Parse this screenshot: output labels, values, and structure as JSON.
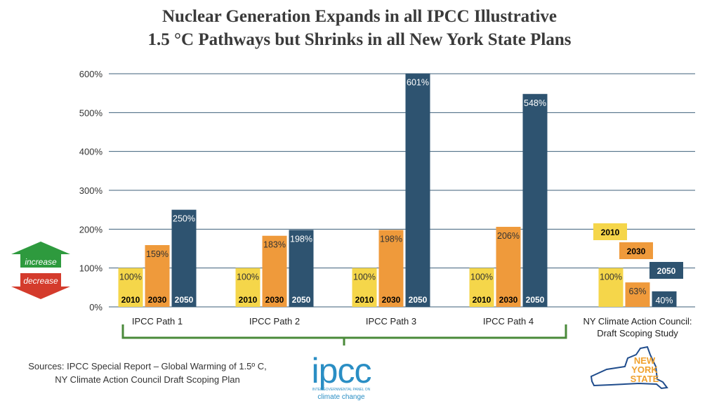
{
  "title_line1": "Nuclear Generation Expands in all IPCC Illustrative",
  "title_line2": "1.5 °C Pathways but Shrinks in all New York State Plans",
  "sources_line1": "Sources:  IPCC Special Report – Global Warming of 1.5º C,",
  "sources_line2": "NY Climate Action Council Draft Scoping Plan",
  "legend": {
    "increase": "increase",
    "decrease": "decrease"
  },
  "ipcc_logo": {
    "text": "ipcc",
    "subtext1": "INTERGOVERNMENTAL PANEL ON",
    "subtext2": "climate change"
  },
  "nys_logo": {
    "line1": "NEW",
    "line2": "YORK",
    "line3": "STATE"
  },
  "colors": {
    "y2010": "#f5d64a",
    "y2030": "#ef9a3b",
    "y2050": "#2e5370",
    "increase": "#2e9a3e",
    "decrease": "#d43b2c",
    "bracket": "#4a8a3a",
    "grid": "#3d5f7a"
  },
  "chart_data": {
    "type": "bar",
    "title": "Nuclear Generation Expands in all IPCC Illustrative 1.5 °C Pathways but Shrinks in all New York State Plans",
    "categories": [
      "IPCC Path 1",
      "IPCC Path 2",
      "IPCC Path 3",
      "IPCC Path 4",
      "NY Climate Action Council:|Draft Scoping Study"
    ],
    "series": [
      {
        "name": "2010",
        "values": [
          100,
          100,
          100,
          100,
          100
        ],
        "labels": [
          "100%",
          "100%",
          "100%",
          "100%",
          "100%"
        ]
      },
      {
        "name": "2030",
        "values": [
          159,
          183,
          198,
          206,
          63
        ],
        "labels": [
          "159%",
          "183%",
          "198%",
          "206%",
          "63%"
        ]
      },
      {
        "name": "2050",
        "values": [
          250,
          198,
          601,
          548,
          40
        ],
        "labels": [
          "250%",
          "198%",
          "601%",
          "548%",
          "40%"
        ]
      }
    ],
    "ylim": [
      0,
      600
    ],
    "yticks": [
      0,
      100,
      200,
      300,
      400,
      500,
      600
    ],
    "ytick_labels": [
      "0%",
      "100%",
      "200%",
      "300%",
      "400%",
      "500%",
      "600%"
    ],
    "xlabel": "",
    "ylabel": "",
    "grid": true
  }
}
